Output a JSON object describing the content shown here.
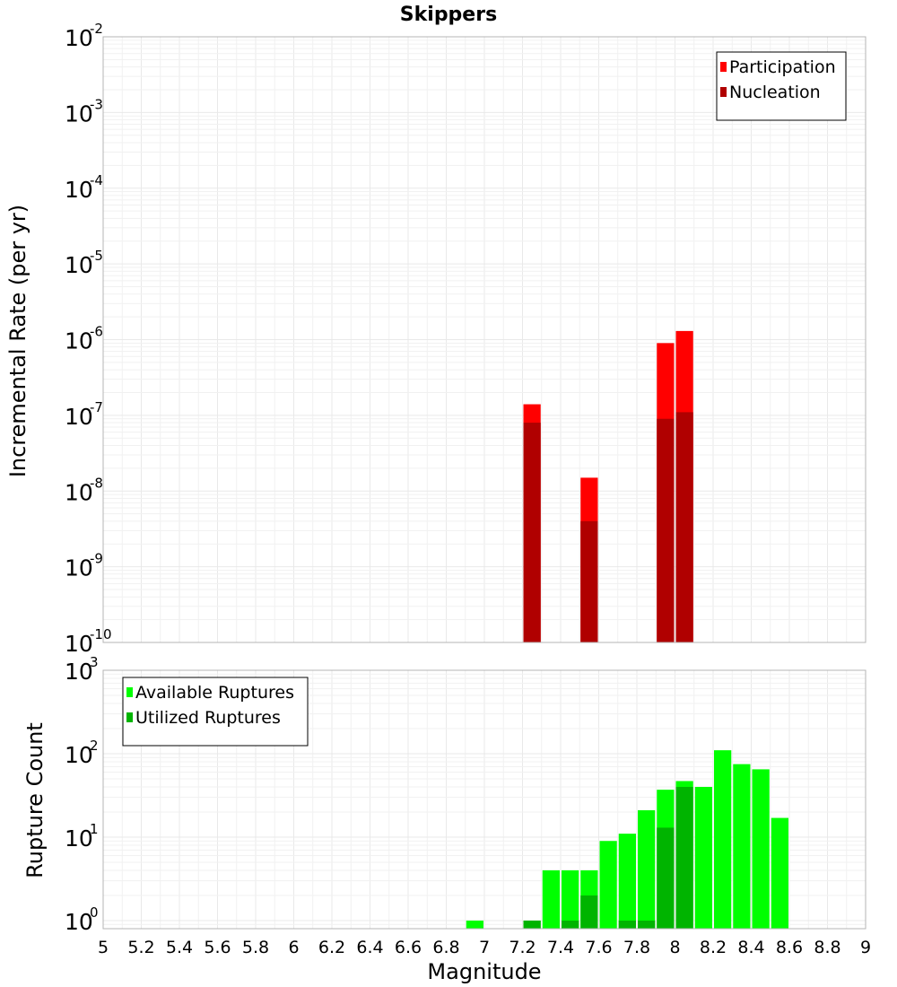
{
  "chart_data": [
    {
      "type": "bar",
      "title": "Skippers",
      "xlabel": "Magnitude",
      "ylabel": "Incremental Rate (per yr)",
      "yscale": "log",
      "ylim": [
        1e-10,
        0.01
      ],
      "xlim": [
        5,
        9
      ],
      "bar_width": 0.1,
      "grid": true,
      "legend_position": "top-right",
      "y_ticks": [
        {
          "base": "10",
          "exp": "-2"
        },
        {
          "base": "10",
          "exp": "-3"
        },
        {
          "base": "10",
          "exp": "-4"
        },
        {
          "base": "10",
          "exp": "-5"
        },
        {
          "base": "10",
          "exp": "-6"
        },
        {
          "base": "10",
          "exp": "-7"
        },
        {
          "base": "10",
          "exp": "-8"
        },
        {
          "base": "10",
          "exp": "-9"
        },
        {
          "base": "10",
          "exp": "-10"
        }
      ],
      "series": [
        {
          "name": "Participation",
          "color": "#ff0000",
          "x": [
            7.25,
            7.55,
            7.95,
            8.05
          ],
          "values": [
            1.4e-07,
            1.5e-08,
            9e-07,
            1.3e-06
          ]
        },
        {
          "name": "Nucleation",
          "color": "#b00000",
          "x": [
            7.25,
            7.55,
            7.95,
            8.05
          ],
          "values": [
            8e-08,
            4e-09,
            9e-08,
            1.1e-07
          ]
        }
      ]
    },
    {
      "type": "bar",
      "xlabel": "Magnitude",
      "ylabel": "Rupture Count",
      "yscale": "log",
      "ylim": [
        0.8,
        1000
      ],
      "xlim": [
        5,
        9
      ],
      "bar_width": 0.1,
      "grid": true,
      "legend_position": "top-left",
      "x_ticks": [
        "5",
        "5.2",
        "5.4",
        "5.6",
        "5.8",
        "6",
        "6.2",
        "6.4",
        "6.6",
        "6.8",
        "7",
        "7.2",
        "7.4",
        "7.6",
        "7.8",
        "8",
        "8.2",
        "8.4",
        "8.6",
        "8.8",
        "9"
      ],
      "y_ticks": [
        {
          "base": "10",
          "exp": "3"
        },
        {
          "base": "10",
          "exp": "2"
        },
        {
          "base": "10",
          "exp": "1"
        },
        {
          "base": "10",
          "exp": "0"
        }
      ],
      "series": [
        {
          "name": "Available Ruptures",
          "color": "#00ff00",
          "x": [
            6.95,
            7.25,
            7.35,
            7.45,
            7.55,
            7.65,
            7.75,
            7.85,
            7.95,
            8.05,
            8.15,
            8.25,
            8.35,
            8.45,
            8.55
          ],
          "values": [
            1,
            1,
            4,
            4,
            4,
            9,
            11,
            21,
            37,
            47,
            40,
            110,
            75,
            65,
            17
          ]
        },
        {
          "name": "Utilized Ruptures",
          "color": "#00b400",
          "x": [
            7.25,
            7.45,
            7.55,
            7.75,
            7.85,
            7.95,
            8.05
          ],
          "values": [
            1,
            1,
            2,
            1,
            1,
            13,
            40
          ]
        }
      ]
    }
  ]
}
